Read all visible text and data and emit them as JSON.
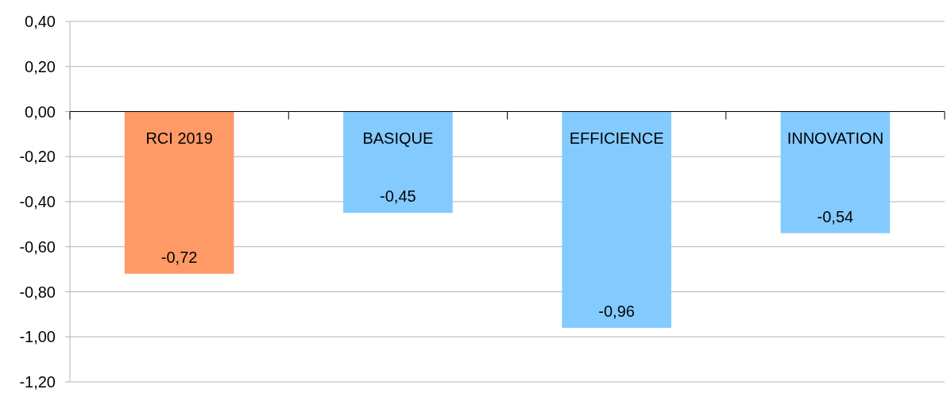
{
  "chart_data": {
    "type": "bar",
    "categories": [
      "RCI 2019",
      "BASIQUE",
      "EFFICIENCE",
      "INNOVATION"
    ],
    "values": [
      -0.72,
      -0.45,
      -0.96,
      -0.54
    ],
    "colors": [
      "#ff9966",
      "#83caff",
      "#83caff",
      "#83caff"
    ],
    "value_labels": [
      "-0,72",
      "-0,45",
      "-0,96",
      "-0,54"
    ],
    "ylim": [
      -1.2,
      0.4
    ],
    "yticks": [
      {
        "value": 0.4,
        "label": "0,40"
      },
      {
        "value": 0.2,
        "label": "0,20"
      },
      {
        "value": 0,
        "label": "0,00"
      },
      {
        "value": -0.2,
        "label": "-0,20"
      },
      {
        "value": -0.4,
        "label": "-0,40"
      },
      {
        "value": -0.6,
        "label": "-0,60"
      },
      {
        "value": -0.8,
        "label": "-0,80"
      },
      {
        "value": -1,
        "label": "-1,00"
      },
      {
        "value": -1.2,
        "label": "-1,20"
      }
    ],
    "grid": "y"
  }
}
